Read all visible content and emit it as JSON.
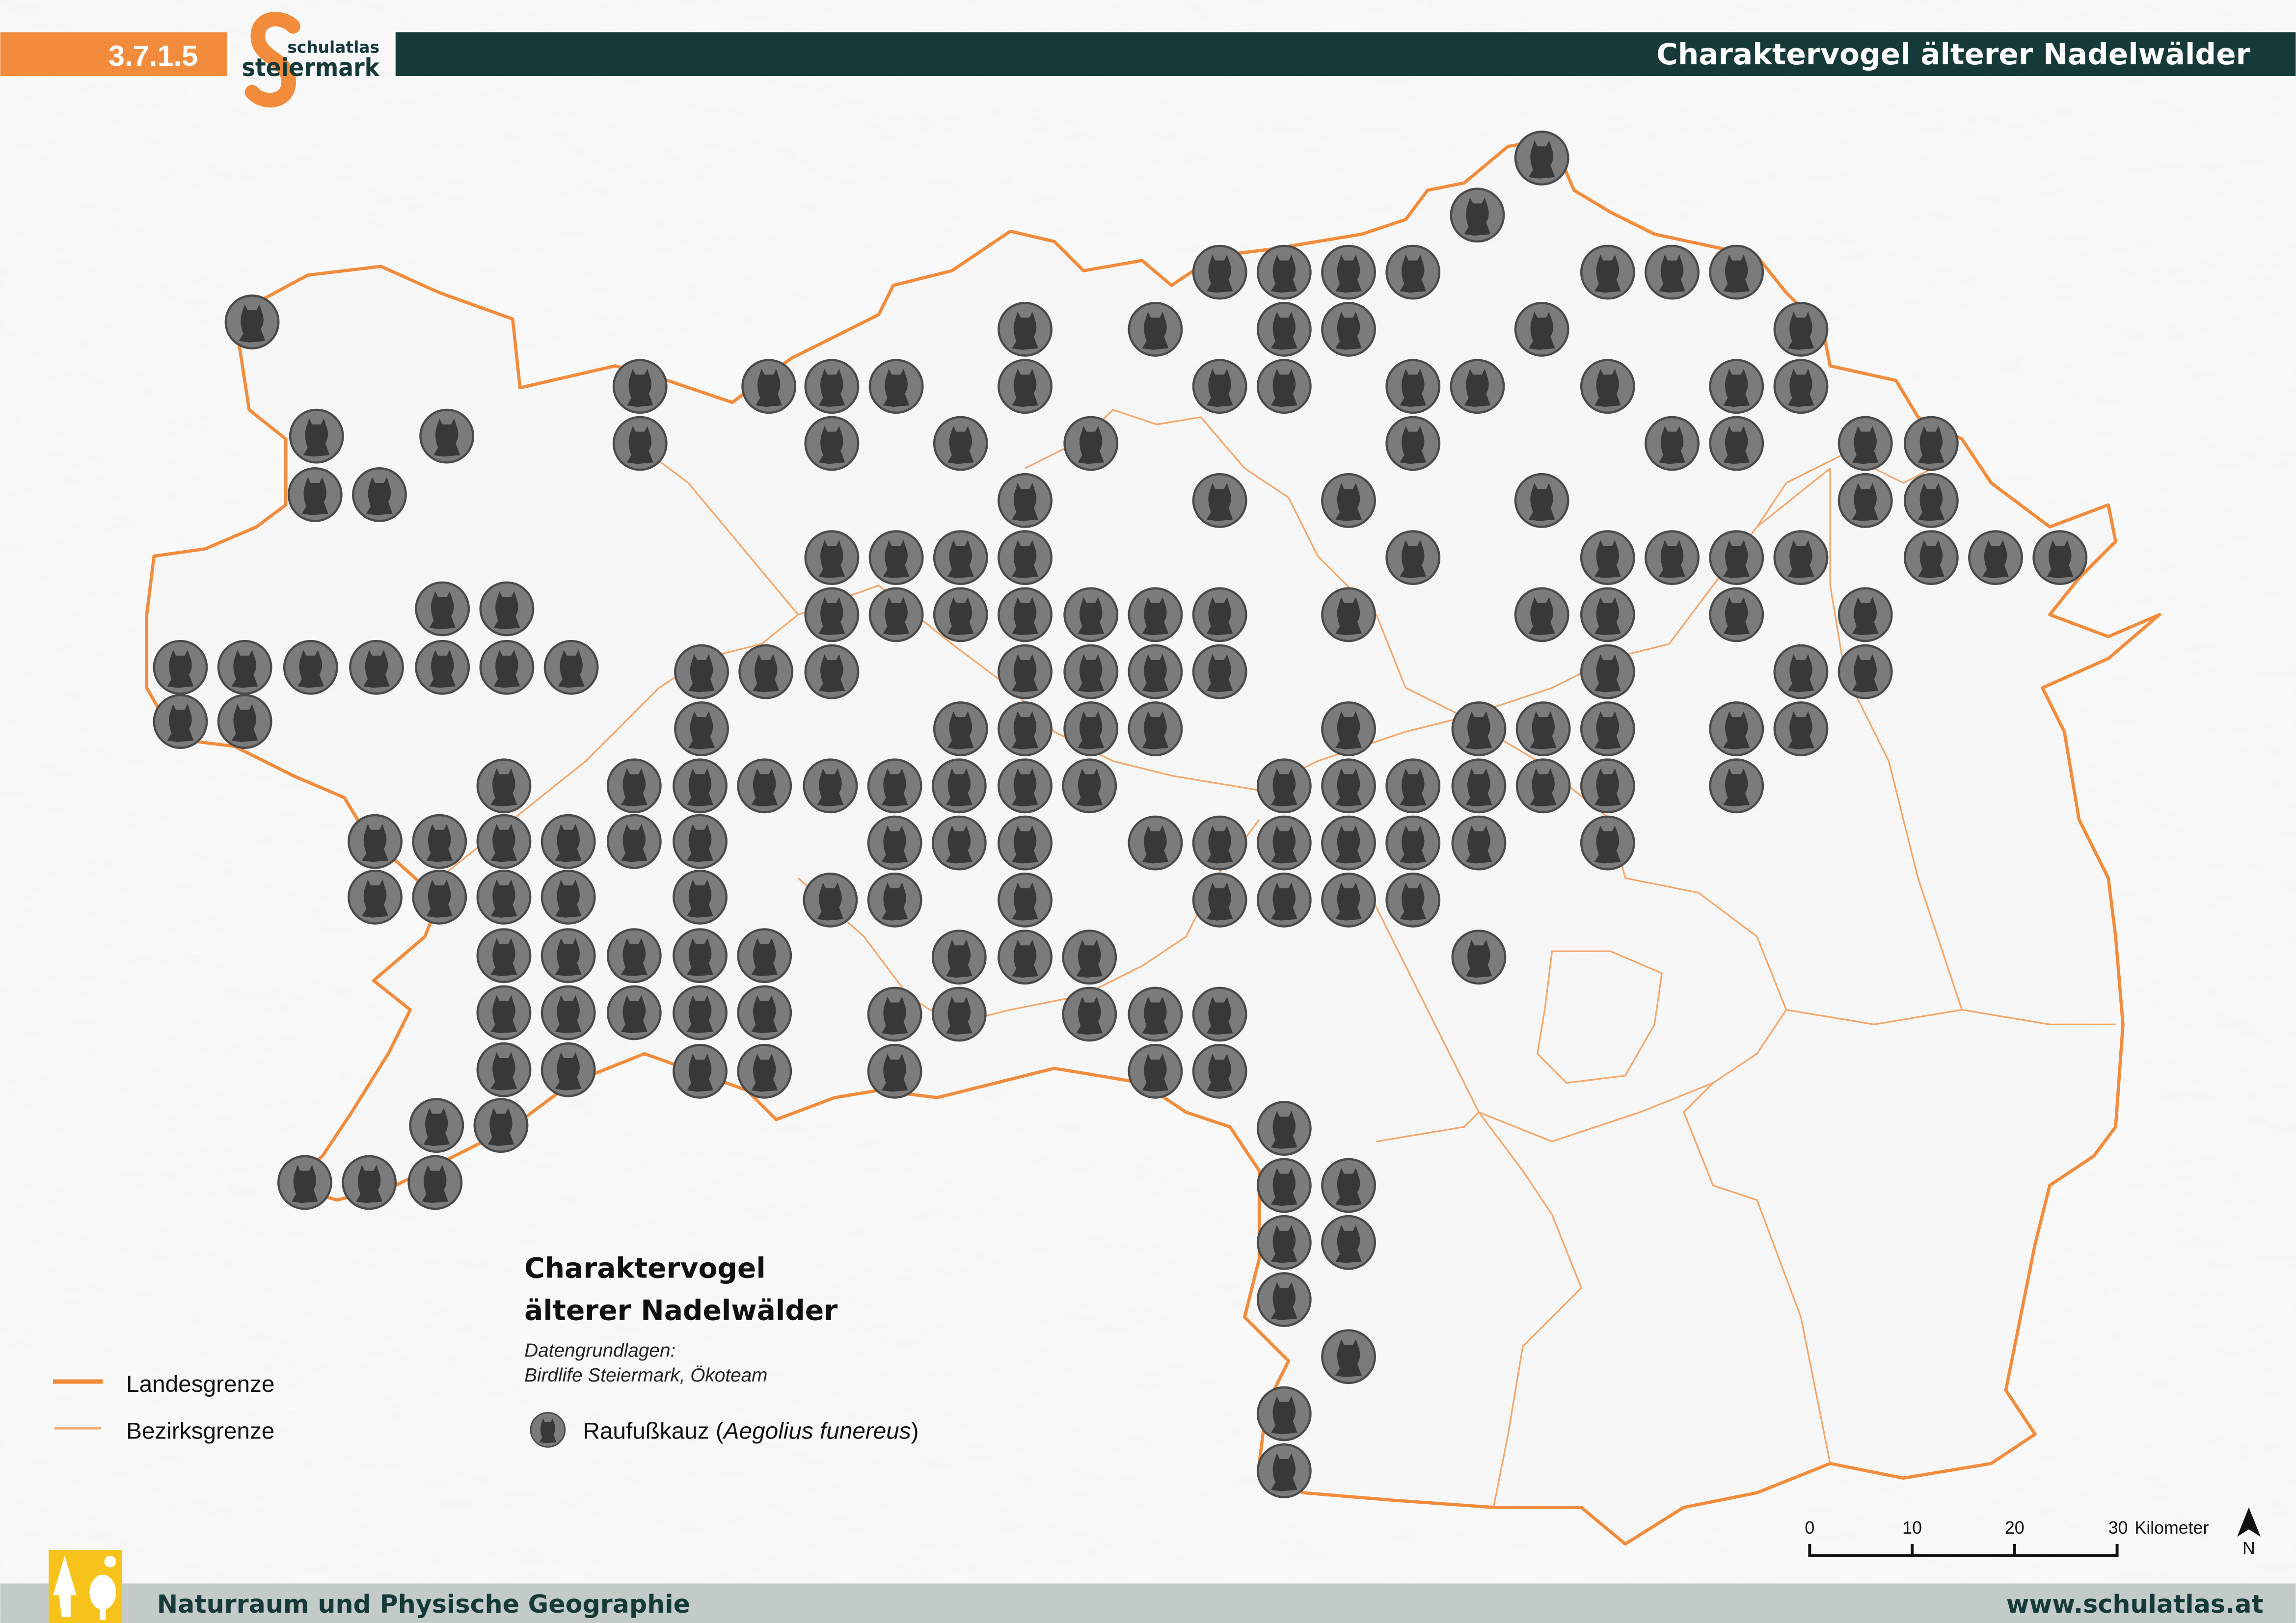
{
  "header": {
    "map_number": "3.7.1.5",
    "logo_text_top": "schulatlas",
    "logo_text_bottom": "steiermark",
    "title": "Charaktervogel älterer Nadelwälder"
  },
  "legend": {
    "title_line1": "Charaktervogel",
    "title_line2": "älterer Nadelwälder",
    "source_label": "Datengrundlagen:",
    "source_text": "Birdlife Steiermark, Ökoteam",
    "species_common": "Raufußkauz",
    "species_latin": "Aegolius funereus",
    "boundaries": [
      {
        "label": "Landesgrenze",
        "color": "#f28c3c"
      },
      {
        "label": "Bezirksgrenze",
        "color": "#f5a66a"
      }
    ]
  },
  "scale_bar": {
    "ticks": [
      "0",
      "10",
      "20",
      "30"
    ],
    "unit": "Kilometer"
  },
  "north_arrow": {
    "label": "N"
  },
  "footer": {
    "category": "Naturraum und Physische Geographie",
    "website": "www.schulatlas.at",
    "icon": "forest-sun-icon"
  },
  "colors": {
    "accent_orange": "#f28c3c",
    "dark_green": "#153a37",
    "footer_grey": "#c3cbc9",
    "category_yellow": "#f7c31a",
    "marker_fill": "#7b7b7b"
  }
}
